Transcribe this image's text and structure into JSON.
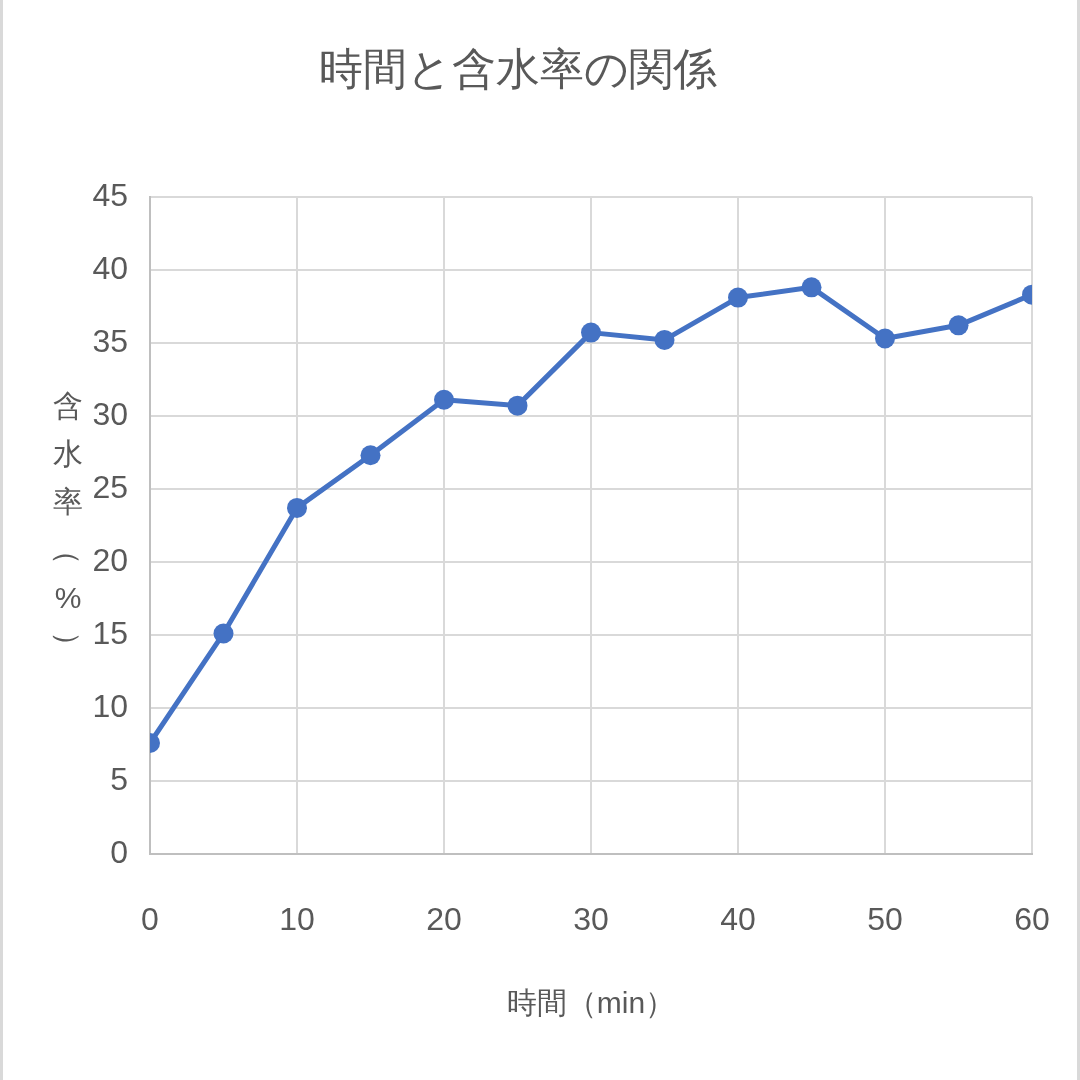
{
  "chart_data": {
    "type": "line",
    "title": "時間と含水率の関係",
    "xlabel": "時間（min）",
    "ylabel": "含水率（%）",
    "x": [
      0,
      5,
      10,
      15,
      20,
      25,
      30,
      35,
      40,
      45,
      50,
      55,
      60
    ],
    "series": [
      {
        "color": "#4472c4",
        "values": [
          7.6,
          15.1,
          23.7,
          27.3,
          31.1,
          30.7,
          35.7,
          35.2,
          38.1,
          38.8,
          35.3,
          36.2,
          38.3
        ]
      }
    ],
    "xlim": [
      0,
      60
    ],
    "xticks": [
      0,
      10,
      20,
      30,
      40,
      50,
      60
    ],
    "ylim": [
      0,
      45
    ],
    "yticks": [
      0,
      5,
      10,
      15,
      20,
      25,
      30,
      35,
      40,
      45
    ],
    "grid": true,
    "marker": "circle",
    "line_style": "solid"
  }
}
